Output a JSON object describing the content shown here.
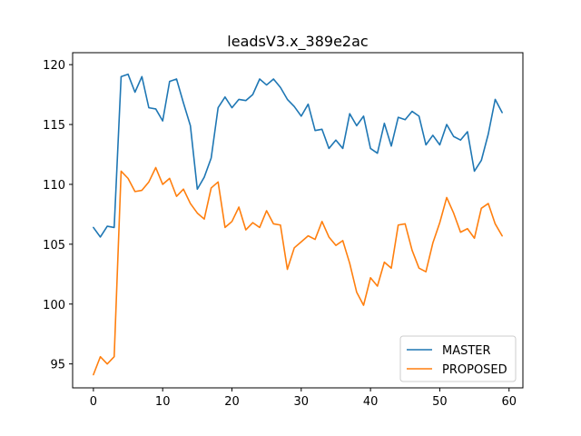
{
  "chart_data": {
    "type": "line",
    "title": "leadsV3.x_389e2ac",
    "xlabel": "",
    "ylabel": "",
    "xlim": [
      -3,
      62
    ],
    "ylim": [
      93,
      121
    ],
    "xticks": [
      0,
      10,
      20,
      30,
      40,
      50,
      60
    ],
    "yticks": [
      95,
      100,
      105,
      110,
      115,
      120
    ],
    "legend_position": "lower-right",
    "grid": false,
    "series": [
      {
        "name": "MASTER",
        "color": "#1f77b4",
        "x": [
          0,
          1,
          2,
          3,
          4,
          5,
          6,
          7,
          8,
          9,
          10,
          11,
          12,
          13,
          14,
          15,
          16,
          17,
          18,
          19,
          20,
          21,
          22,
          23,
          24,
          25,
          26,
          27,
          28,
          29,
          30,
          31,
          32,
          33,
          34,
          35,
          36,
          37,
          38,
          39,
          40,
          41,
          42,
          43,
          44,
          45,
          46,
          47,
          48,
          49,
          50,
          51,
          52,
          53,
          54,
          55,
          56,
          57,
          58,
          59
        ],
        "values": [
          106.4,
          105.6,
          106.5,
          106.4,
          119.0,
          119.2,
          117.7,
          119.0,
          116.4,
          116.3,
          115.3,
          118.6,
          118.8,
          116.8,
          114.9,
          109.6,
          110.6,
          112.2,
          116.4,
          117.3,
          116.4,
          117.1,
          117.0,
          117.5,
          118.8,
          118.3,
          118.8,
          118.1,
          117.1,
          116.5,
          115.7,
          116.7,
          114.5,
          114.6,
          113.0,
          113.7,
          113.0,
          115.9,
          114.9,
          115.7,
          113.0,
          112.6,
          115.1,
          113.2,
          115.6,
          115.4,
          116.1,
          115.7,
          113.3,
          114.1,
          113.3,
          115.0,
          114.0,
          113.7,
          114.4,
          111.1,
          112.0,
          114.2,
          117.1,
          116.0
        ]
      },
      {
        "name": "PROPOSED",
        "color": "#ff7f0e",
        "x": [
          0,
          1,
          2,
          3,
          4,
          5,
          6,
          7,
          8,
          9,
          10,
          11,
          12,
          13,
          14,
          15,
          16,
          17,
          18,
          19,
          20,
          21,
          22,
          23,
          24,
          25,
          26,
          27,
          28,
          29,
          30,
          31,
          32,
          33,
          34,
          35,
          36,
          37,
          38,
          39,
          40,
          41,
          42,
          43,
          44,
          45,
          46,
          47,
          48,
          49,
          50,
          51,
          52,
          53,
          54,
          55,
          56,
          57,
          58,
          59
        ],
        "values": [
          94.1,
          95.6,
          95.0,
          95.6,
          111.1,
          110.5,
          109.4,
          109.5,
          110.2,
          111.4,
          110.0,
          110.5,
          109.0,
          109.6,
          108.4,
          107.6,
          107.1,
          109.7,
          110.2,
          106.4,
          106.9,
          108.1,
          106.2,
          106.8,
          106.4,
          107.8,
          106.7,
          106.6,
          102.9,
          104.7,
          105.2,
          105.7,
          105.4,
          106.9,
          105.6,
          104.9,
          105.3,
          103.4,
          101.0,
          99.9,
          102.2,
          101.5,
          103.5,
          103.0,
          106.6,
          106.7,
          104.5,
          103.0,
          102.7,
          105.1,
          106.8,
          108.9,
          107.6,
          106.0,
          106.3,
          105.5,
          108.0,
          108.4,
          106.7,
          105.7
        ]
      }
    ]
  }
}
